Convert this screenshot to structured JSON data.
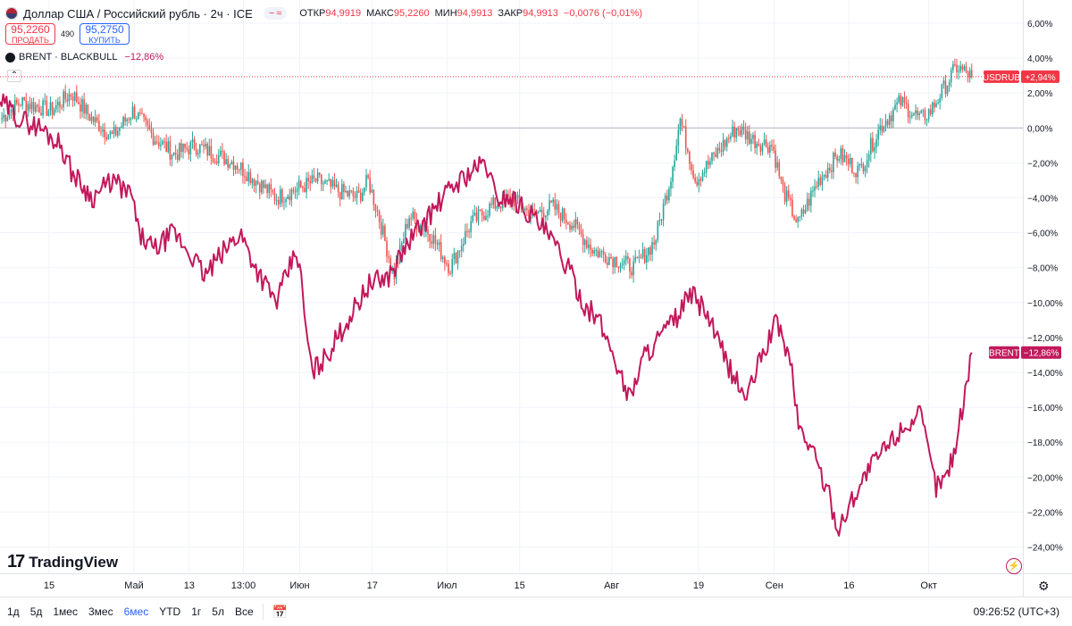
{
  "header": {
    "title": "Доллар США / Российский рубль · 2ч · ICE",
    "pill_icons": [
      "minus-icon",
      "approx-icon"
    ],
    "ohlc": [
      {
        "label": "ОТКР",
        "value": "94,9919"
      },
      {
        "label": "МАКС",
        "value": "95,2260"
      },
      {
        "label": "МИН",
        "value": "94,9913"
      },
      {
        "label": "ЗАКР",
        "value": "94,9913"
      }
    ],
    "change": "−0,0076 (−0,01%)"
  },
  "trade": {
    "sell_price": "95,2260",
    "sell_label": "ПРОДАТЬ",
    "spread": "490",
    "buy_price": "95,2750",
    "buy_label": "КУПИТЬ"
  },
  "brent_legend": {
    "name": "BRENT · BLACKBULL",
    "change": "−12,86%"
  },
  "logo": "TradingView",
  "colors": {
    "up": "#26a69a",
    "down": "#ef5350",
    "brent": "#c2185b",
    "usdrub_tag": "#f23645"
  },
  "chart_data": {
    "type": "line",
    "y_axis_unit": "%",
    "ylim": [
      -25,
      6.5
    ],
    "y_ticks": [
      "6,00%",
      "4,00%",
      "2,00%",
      "0,00%",
      "−2,00%",
      "−4,00%",
      "−6,00%",
      "−8,00%",
      "−10,00%",
      "−12,00%",
      "−14,00%",
      "−16,00%",
      "−18,00%",
      "−20,00%",
      "−22,00%",
      "−24,00%"
    ],
    "y_tick_values": [
      6,
      4,
      2,
      0,
      -2,
      -4,
      -6,
      -8,
      -10,
      -12,
      -14,
      -16,
      -18,
      -20,
      -22,
      -24
    ],
    "x_ticks": [
      {
        "label": "15",
        "t": 0.048
      },
      {
        "label": "Май",
        "t": 0.131
      },
      {
        "label": "13",
        "t": 0.185
      },
      {
        "label": "13:00",
        "t": 0.238
      },
      {
        "label": "Июн",
        "t": 0.293
      },
      {
        "label": "17",
        "t": 0.364
      },
      {
        "label": "Июл",
        "t": 0.437
      },
      {
        "label": "15",
        "t": 0.508
      },
      {
        "label": "Авг",
        "t": 0.598
      },
      {
        "label": "19",
        "t": 0.683
      },
      {
        "label": "Сен",
        "t": 0.757
      },
      {
        "label": "16",
        "t": 0.83
      },
      {
        "label": "Окт",
        "t": 0.908
      }
    ],
    "series": [
      {
        "name": "USDRUB",
        "style": "candles",
        "last_label": "+2,94%",
        "last_value": 2.94,
        "keypoints": [
          [
            0,
            0.5
          ],
          [
            0.02,
            1.5
          ],
          [
            0.05,
            1.0
          ],
          [
            0.07,
            2.0
          ],
          [
            0.09,
            0.5
          ],
          [
            0.11,
            -0.5
          ],
          [
            0.13,
            1.0
          ],
          [
            0.15,
            -0.5
          ],
          [
            0.17,
            -1.5
          ],
          [
            0.19,
            -1.0
          ],
          [
            0.21,
            -1.5
          ],
          [
            0.23,
            -2.0
          ],
          [
            0.25,
            -3.0
          ],
          [
            0.27,
            -4.0
          ],
          [
            0.29,
            -3.5
          ],
          [
            0.31,
            -3.0
          ],
          [
            0.33,
            -3.6
          ],
          [
            0.35,
            -4.0
          ],
          [
            0.36,
            -3.0
          ],
          [
            0.37,
            -5.0
          ],
          [
            0.385,
            -8.5
          ],
          [
            0.4,
            -5.0
          ],
          [
            0.42,
            -6.0
          ],
          [
            0.44,
            -8.0
          ],
          [
            0.46,
            -5.5
          ],
          [
            0.48,
            -4.5
          ],
          [
            0.5,
            -4.0
          ],
          [
            0.52,
            -5.0
          ],
          [
            0.54,
            -4.5
          ],
          [
            0.56,
            -5.5
          ],
          [
            0.58,
            -7.0
          ],
          [
            0.6,
            -7.5
          ],
          [
            0.62,
            -8.0
          ],
          [
            0.64,
            -6.5
          ],
          [
            0.655,
            -3.0
          ],
          [
            0.665,
            0.5
          ],
          [
            0.68,
            -3.0
          ],
          [
            0.7,
            -1.5
          ],
          [
            0.72,
            0.0
          ],
          [
            0.74,
            -0.8
          ],
          [
            0.755,
            -1.0
          ],
          [
            0.765,
            -3.5
          ],
          [
            0.78,
            -5.5
          ],
          [
            0.8,
            -3.0
          ],
          [
            0.82,
            -1.5
          ],
          [
            0.84,
            -2.5
          ],
          [
            0.86,
            0.0
          ],
          [
            0.88,
            1.5
          ],
          [
            0.9,
            0.5
          ],
          [
            0.91,
            1.0
          ],
          [
            0.92,
            2.0
          ],
          [
            0.935,
            3.5
          ],
          [
            0.95,
            2.94
          ]
        ]
      },
      {
        "name": "BRENT",
        "style": "line",
        "last_label": "−12,86%",
        "last_value": -12.86,
        "keypoints": [
          [
            0,
            1.5
          ],
          [
            0.02,
            0.5
          ],
          [
            0.04,
            0.0
          ],
          [
            0.06,
            -1.0
          ],
          [
            0.07,
            -2.5
          ],
          [
            0.09,
            -4.0
          ],
          [
            0.11,
            -3.0
          ],
          [
            0.13,
            -4.0
          ],
          [
            0.135,
            -6.0
          ],
          [
            0.15,
            -7.0
          ],
          [
            0.17,
            -6.0
          ],
          [
            0.19,
            -7.5
          ],
          [
            0.2,
            -8.5
          ],
          [
            0.22,
            -7.0
          ],
          [
            0.235,
            -6.0
          ],
          [
            0.25,
            -8.0
          ],
          [
            0.27,
            -10.0
          ],
          [
            0.28,
            -8.5
          ],
          [
            0.29,
            -7.0
          ],
          [
            0.295,
            -9.0
          ],
          [
            0.3,
            -12.0
          ],
          [
            0.305,
            -14.0
          ],
          [
            0.32,
            -13.0
          ],
          [
            0.34,
            -11.0
          ],
          [
            0.36,
            -9.0
          ],
          [
            0.38,
            -8.5
          ],
          [
            0.4,
            -6.5
          ],
          [
            0.42,
            -5.0
          ],
          [
            0.44,
            -3.5
          ],
          [
            0.46,
            -2.5
          ],
          [
            0.475,
            -2.0
          ],
          [
            0.485,
            -4.0
          ],
          [
            0.5,
            -4.0
          ],
          [
            0.52,
            -5.0
          ],
          [
            0.54,
            -6.5
          ],
          [
            0.555,
            -8.0
          ],
          [
            0.57,
            -10.0
          ],
          [
            0.585,
            -11.0
          ],
          [
            0.6,
            -13.0
          ],
          [
            0.615,
            -15.5
          ],
          [
            0.63,
            -13.0
          ],
          [
            0.645,
            -12.0
          ],
          [
            0.66,
            -11.0
          ],
          [
            0.675,
            -9.5
          ],
          [
            0.69,
            -10.5
          ],
          [
            0.7,
            -12.0
          ],
          [
            0.715,
            -14.0
          ],
          [
            0.73,
            -15.5
          ],
          [
            0.745,
            -13.0
          ],
          [
            0.76,
            -11.0
          ],
          [
            0.775,
            -14.0
          ],
          [
            0.78,
            -17.0
          ],
          [
            0.795,
            -18.5
          ],
          [
            0.81,
            -21.0
          ],
          [
            0.82,
            -23.0
          ],
          [
            0.835,
            -21.0
          ],
          [
            0.85,
            -19.5
          ],
          [
            0.87,
            -18.0
          ],
          [
            0.885,
            -17.0
          ],
          [
            0.9,
            -16.5
          ],
          [
            0.915,
            -20.5
          ],
          [
            0.925,
            -20.0
          ],
          [
            0.935,
            -18.0
          ],
          [
            0.945,
            -14.5
          ],
          [
            0.95,
            -12.86
          ]
        ]
      }
    ],
    "zero_line": 0
  },
  "bottom": {
    "ranges": [
      "1д",
      "5д",
      "1мес",
      "3мес",
      "6мес",
      "YTD",
      "1г",
      "5л",
      "Все"
    ],
    "active": "6мес",
    "time": "09:26:52 (UTC+3)"
  }
}
